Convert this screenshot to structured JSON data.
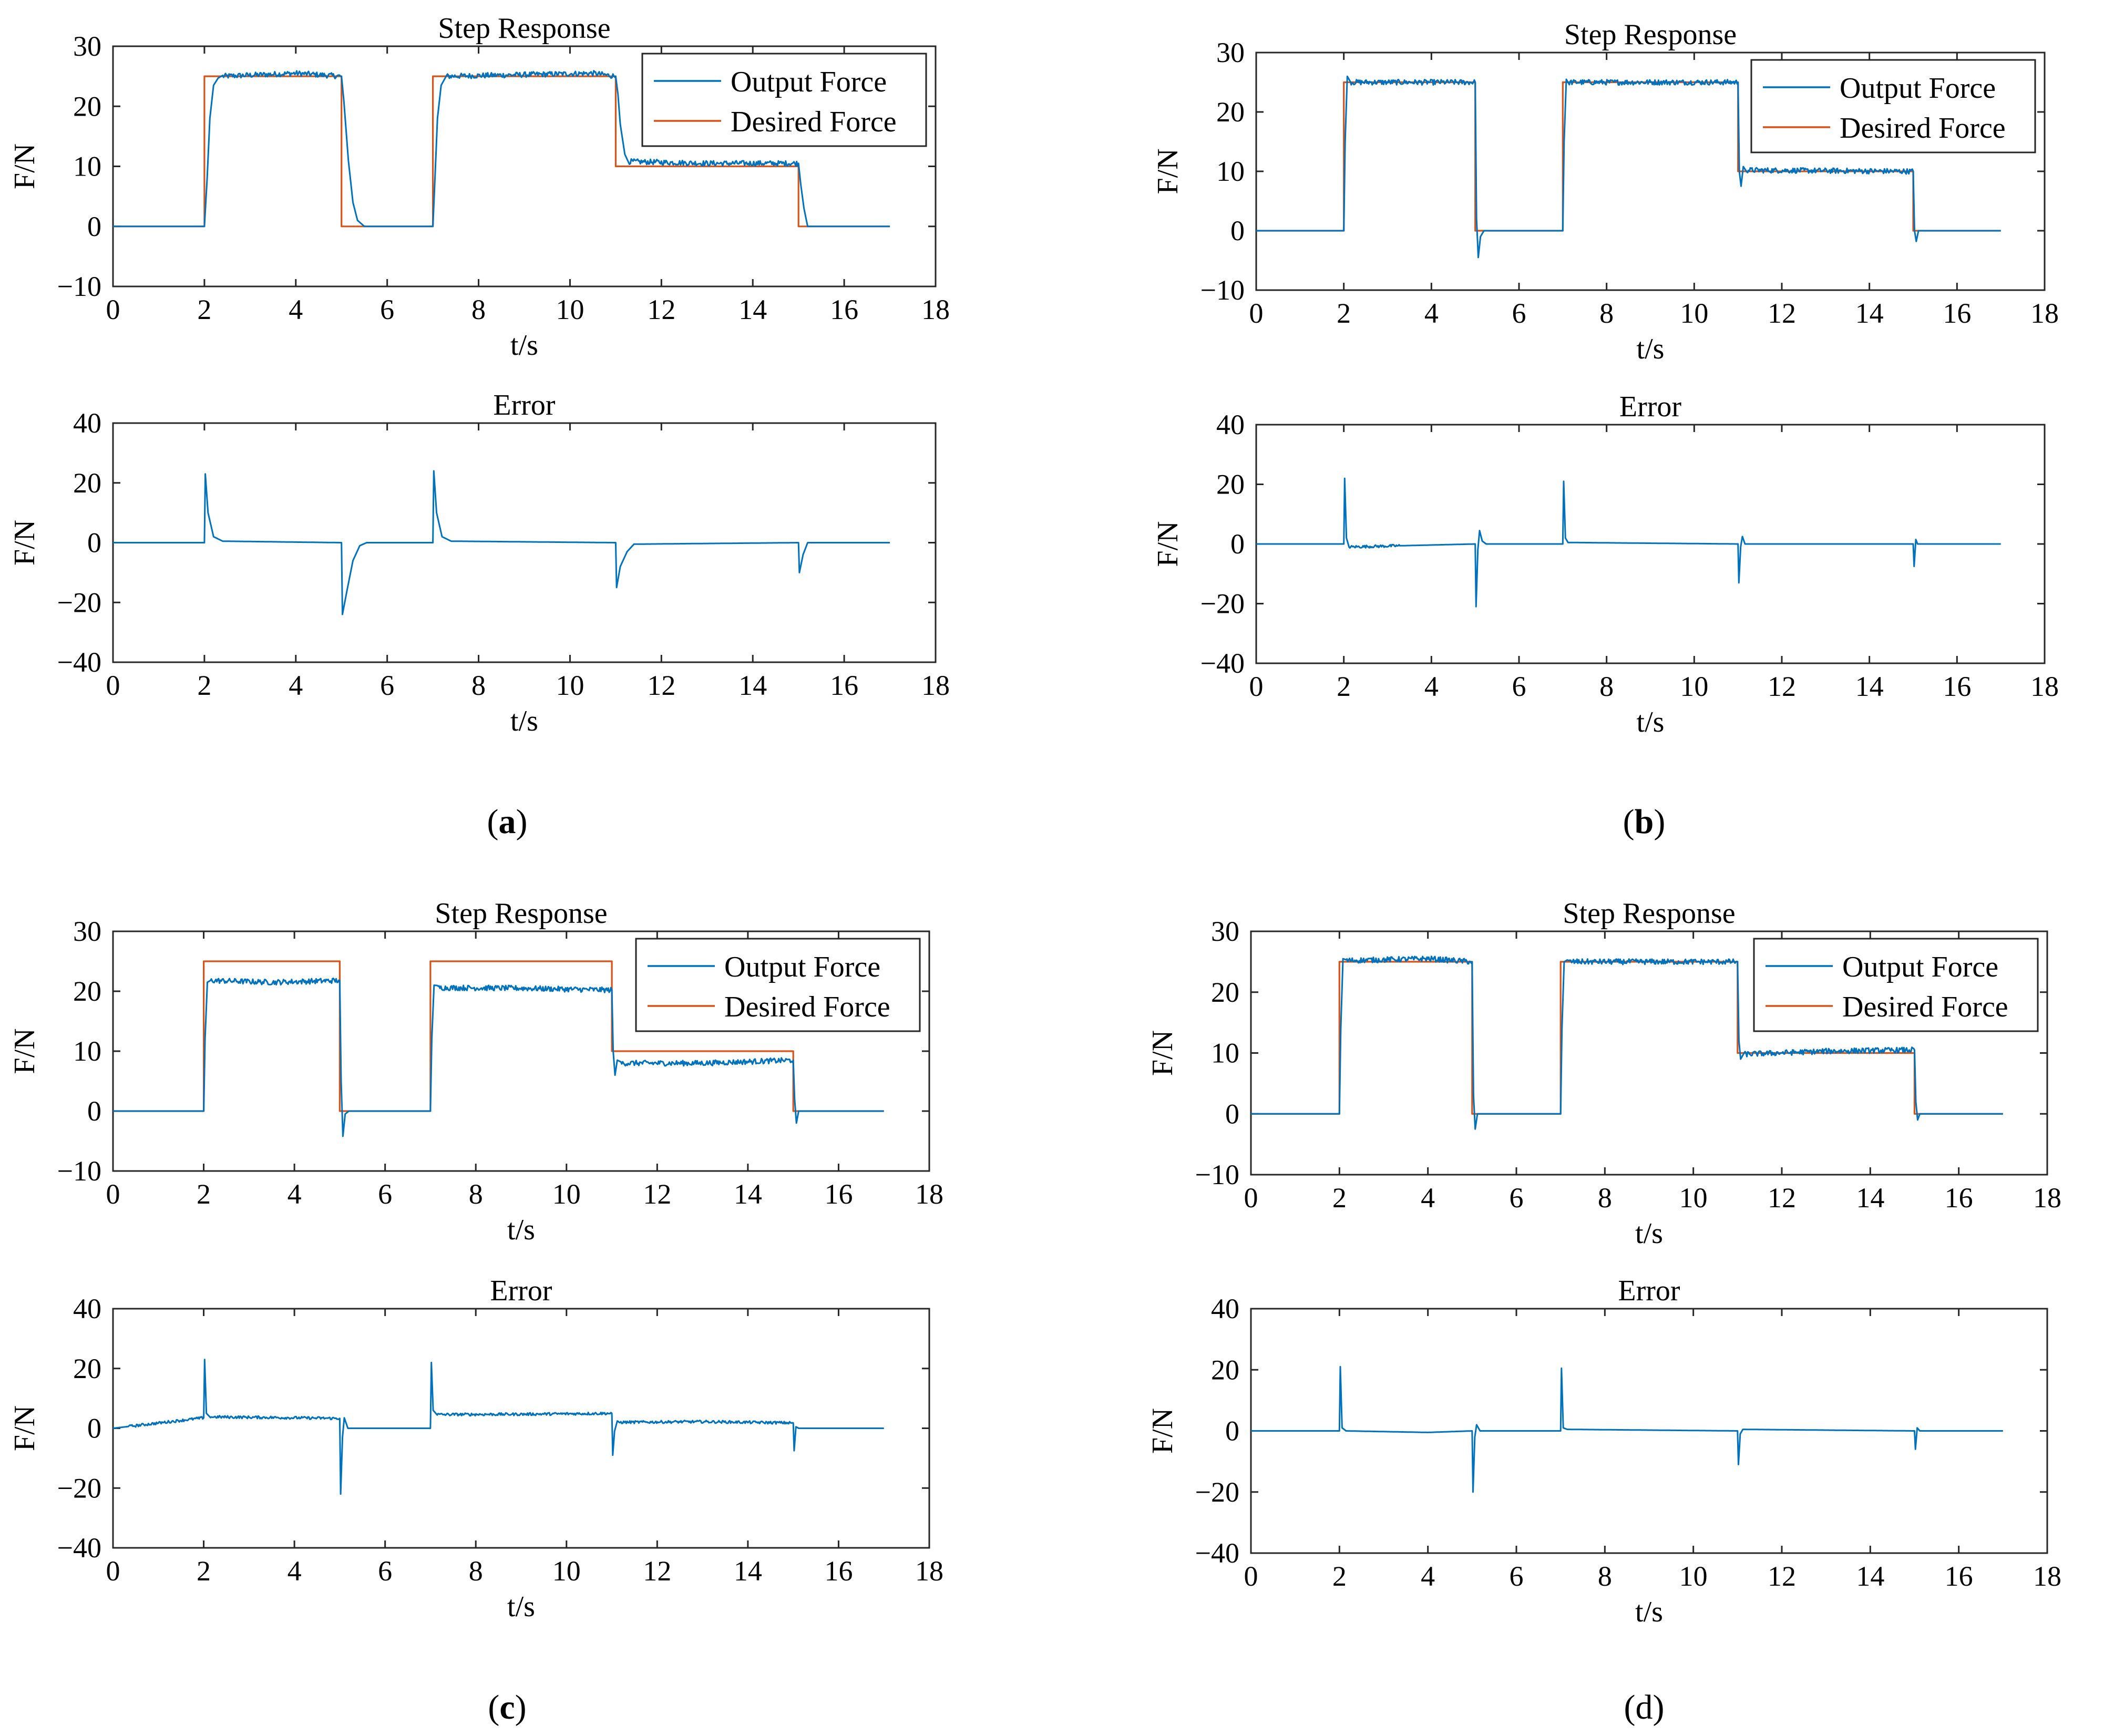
{
  "colors": {
    "output": "#0072BD",
    "desired": "#D95319",
    "axis": "#262626"
  },
  "panels": [
    {
      "letter": "a",
      "bold": true
    },
    {
      "letter": "b",
      "bold": true
    },
    {
      "letter": "c",
      "bold": true
    },
    {
      "letter": "d",
      "bold": false
    }
  ],
  "legend": {
    "output": "Output Force",
    "desired": "Desired Force"
  },
  "chart_data": [
    {
      "id": "a-step",
      "panel": "a",
      "kind": "step",
      "type": "line",
      "title": "Step Response",
      "xlabel": "t/s",
      "ylabel": "F/N",
      "xlim": [
        0,
        18
      ],
      "ylim": [
        -10,
        30
      ],
      "xticks": [
        0,
        2,
        4,
        6,
        8,
        10,
        12,
        14,
        16,
        18
      ],
      "yticks": [
        -10,
        0,
        10,
        20,
        30
      ],
      "legend_position": "top-right",
      "series": [
        {
          "name": "Output Force",
          "role": "output",
          "x": [
            0,
            2,
            2.06,
            2.12,
            2.2,
            2.3,
            2.4,
            4.0,
            5.0,
            5.05,
            5.15,
            5.25,
            5.35,
            5.5,
            7.0,
            7.05,
            7.1,
            7.18,
            7.3,
            10.5,
            11.0,
            11.05,
            11.1,
            11.2,
            11.3,
            13.0,
            15.0,
            15.05,
            15.12,
            15.2,
            17
          ],
          "y": [
            0,
            0,
            8,
            18,
            23.5,
            24.7,
            25,
            25.5,
            25,
            21,
            11,
            4,
            1,
            0,
            0,
            9,
            18,
            23.5,
            25,
            25.5,
            25,
            22,
            17,
            12,
            10.8,
            10.5,
            10.5,
            7,
            3,
            0,
            0
          ]
        },
        {
          "name": "Desired Force",
          "role": "desired",
          "x": [
            0,
            2,
            2,
            5,
            5,
            7,
            7,
            11,
            11,
            15,
            15,
            17
          ],
          "y": [
            0,
            0,
            25,
            25,
            0,
            0,
            25,
            25,
            10,
            10,
            0,
            0
          ]
        }
      ]
    },
    {
      "id": "a-error",
      "panel": "a",
      "kind": "error",
      "type": "line",
      "title": "Error",
      "xlabel": "t/s",
      "ylabel": "F/N",
      "xlim": [
        0,
        18
      ],
      "ylim": [
        -40,
        40
      ],
      "xticks": [
        0,
        2,
        4,
        6,
        8,
        10,
        12,
        14,
        16,
        18
      ],
      "yticks": [
        -40,
        -20,
        0,
        20,
        40
      ],
      "series": [
        {
          "name": "Error",
          "role": "output",
          "x": [
            0,
            2.0,
            2.02,
            2.08,
            2.2,
            2.4,
            5.0,
            5.02,
            5.12,
            5.25,
            5.4,
            5.55,
            7.0,
            7.02,
            7.08,
            7.2,
            7.4,
            11.0,
            11.02,
            11.1,
            11.25,
            11.4,
            15.0,
            15.02,
            15.1,
            15.2,
            17
          ],
          "y": [
            0,
            0,
            23,
            10,
            2,
            0.5,
            0,
            -24,
            -16,
            -6,
            -1,
            0,
            0,
            24,
            10,
            2,
            0.5,
            0,
            -15,
            -8,
            -3,
            -0.5,
            0,
            -10,
            -4,
            0,
            0
          ]
        }
      ]
    },
    {
      "id": "b-step",
      "panel": "b",
      "kind": "step",
      "type": "line",
      "title": "Step Response",
      "xlabel": "t/s",
      "ylabel": "F/N",
      "xlim": [
        0,
        18
      ],
      "ylim": [
        -10,
        30
      ],
      "xticks": [
        0,
        2,
        4,
        6,
        8,
        10,
        12,
        14,
        16,
        18
      ],
      "yticks": [
        -10,
        0,
        10,
        20,
        30
      ],
      "legend_position": "top-right",
      "series": [
        {
          "name": "Output Force",
          "role": "output",
          "x": [
            0,
            2,
            2.03,
            2.08,
            2.15,
            5.0,
            5.03,
            5.07,
            5.12,
            5.2,
            7.0,
            7.03,
            7.08,
            7.15,
            11.0,
            11.03,
            11.07,
            11.12,
            11.2,
            15.0,
            15.03,
            15.07,
            15.12,
            15.2,
            17
          ],
          "y": [
            0,
            0,
            15,
            26,
            25,
            25,
            2,
            -4.5,
            -1,
            0,
            0,
            15,
            25.5,
            25,
            25,
            10,
            7.5,
            10.8,
            10.2,
            10,
            0,
            -1.8,
            0,
            0,
            0
          ]
        },
        {
          "name": "Desired Force",
          "role": "desired",
          "x": [
            0,
            2,
            2,
            5,
            5,
            7,
            7,
            11,
            11,
            15,
            15,
            17
          ],
          "y": [
            0,
            0,
            25,
            25,
            0,
            0,
            25,
            25,
            10,
            10,
            0,
            0
          ]
        }
      ]
    },
    {
      "id": "b-error",
      "panel": "b",
      "kind": "error",
      "type": "line",
      "title": "Error",
      "xlabel": "t/s",
      "ylabel": "F/N",
      "xlim": [
        0,
        18
      ],
      "ylim": [
        -40,
        40
      ],
      "xticks": [
        0,
        2,
        4,
        6,
        8,
        10,
        12,
        14,
        16,
        18
      ],
      "yticks": [
        -40,
        -20,
        0,
        20,
        40
      ],
      "series": [
        {
          "name": "Error",
          "role": "output",
          "x": [
            0,
            2.0,
            2.02,
            2.06,
            2.12,
            5.0,
            5.02,
            5.06,
            5.1,
            5.16,
            5.25,
            7.0,
            7.02,
            7.06,
            7.12,
            11.0,
            11.02,
            11.06,
            11.1,
            11.16,
            15.0,
            15.02,
            15.06,
            15.1,
            17
          ],
          "y": [
            0,
            0,
            22,
            2,
            -1,
            0,
            -21,
            -2,
            4.5,
            1,
            0,
            0,
            21,
            2,
            0.5,
            0,
            -13,
            -1,
            2.5,
            0,
            0,
            -7.5,
            1.5,
            0,
            0
          ]
        }
      ]
    },
    {
      "id": "c-step",
      "panel": "c",
      "kind": "step",
      "type": "line",
      "title": "Step Response",
      "xlabel": "t/s",
      "ylabel": "F/N",
      "xlim": [
        0,
        18
      ],
      "ylim": [
        -10,
        30
      ],
      "xticks": [
        0,
        2,
        4,
        6,
        8,
        10,
        12,
        14,
        16,
        18
      ],
      "yticks": [
        -10,
        0,
        10,
        20,
        30
      ],
      "legend_position": "top-right",
      "series": [
        {
          "name": "Output Force",
          "role": "output",
          "x": [
            0,
            2,
            2.03,
            2.08,
            2.15,
            3.5,
            5.0,
            5.03,
            5.07,
            5.12,
            5.2,
            7.0,
            7.03,
            7.08,
            7.15,
            9.0,
            11.0,
            11.03,
            11.07,
            11.12,
            11.2,
            13.0,
            15.0,
            15.03,
            15.07,
            15.12,
            17
          ],
          "y": [
            0,
            0,
            12,
            21.5,
            21.8,
            21.5,
            21.8,
            5,
            -4.2,
            -0.5,
            0,
            0,
            12,
            21,
            20.6,
            20.5,
            20.2,
            10,
            6,
            8.5,
            8,
            8,
            8.5,
            2,
            -2,
            0,
            0
          ]
        },
        {
          "name": "Desired Force",
          "role": "desired",
          "x": [
            0,
            2,
            2,
            5,
            5,
            7,
            7,
            11,
            11,
            15,
            15,
            17
          ],
          "y": [
            0,
            0,
            25,
            25,
            0,
            0,
            25,
            25,
            10,
            10,
            0,
            0
          ]
        }
      ]
    },
    {
      "id": "c-error",
      "panel": "c",
      "kind": "error",
      "type": "line",
      "title": "Error",
      "xlabel": "t/s",
      "ylabel": "F/N",
      "xlim": [
        0,
        18
      ],
      "ylim": [
        -40,
        40
      ],
      "xticks": [
        0,
        2,
        4,
        6,
        8,
        10,
        12,
        14,
        16,
        18
      ],
      "yticks": [
        -40,
        -20,
        0,
        20,
        40
      ],
      "series": [
        {
          "name": "Error",
          "role": "output",
          "x": [
            0,
            2.0,
            2.02,
            2.06,
            2.15,
            3.5,
            5.0,
            5.02,
            5.06,
            5.1,
            5.18,
            7.0,
            7.02,
            7.06,
            7.15,
            9.0,
            11.0,
            11.02,
            11.06,
            11.12,
            13.0,
            15.0,
            15.02,
            15.06,
            15.12,
            17
          ],
          "y": [
            0,
            3.5,
            23,
            5,
            3.8,
            3.6,
            3.3,
            -22,
            -3,
            3.5,
            0,
            0,
            22,
            6,
            4.6,
            4.7,
            5,
            -9,
            -1,
            2,
            2.2,
            1.8,
            -7.5,
            0.5,
            0,
            0
          ]
        }
      ]
    },
    {
      "id": "d-step",
      "panel": "d",
      "kind": "step",
      "type": "line",
      "title": "Step Response",
      "xlabel": "t/s",
      "ylabel": "F/N",
      "xlim": [
        0,
        18
      ],
      "ylim": [
        -10,
        30
      ],
      "xticks": [
        0,
        2,
        4,
        6,
        8,
        10,
        12,
        14,
        16,
        18
      ],
      "yticks": [
        -10,
        0,
        10,
        20,
        30
      ],
      "legend_position": "top-right",
      "series": [
        {
          "name": "Output Force",
          "role": "output",
          "x": [
            0,
            2,
            2.03,
            2.08,
            2.15,
            4.0,
            5.0,
            5.03,
            5.07,
            5.12,
            5.2,
            7.0,
            7.03,
            7.08,
            7.15,
            11.0,
            11.03,
            11.07,
            11.15,
            13.0,
            15.0,
            15.03,
            15.07,
            15.12,
            17
          ],
          "y": [
            0,
            0,
            14,
            25.5,
            25.2,
            25.5,
            25,
            3,
            -2.5,
            0,
            0,
            0,
            14,
            25,
            25,
            25,
            12,
            9,
            9.8,
            10.3,
            10.5,
            2,
            -1,
            0,
            0
          ]
        },
        {
          "name": "Desired Force",
          "role": "desired",
          "x": [
            0,
            2,
            2,
            5,
            5,
            7,
            7,
            11,
            11,
            15,
            15,
            17
          ],
          "y": [
            0,
            0,
            25,
            25,
            0,
            0,
            25,
            25,
            10,
            10,
            0,
            0
          ]
        }
      ]
    },
    {
      "id": "d-error",
      "panel": "d",
      "kind": "error",
      "type": "line",
      "title": "Error",
      "xlabel": "t/s",
      "ylabel": "F/N",
      "xlim": [
        0,
        18
      ],
      "ylim": [
        -40,
        40
      ],
      "xticks": [
        0,
        2,
        4,
        6,
        8,
        10,
        12,
        14,
        16,
        18
      ],
      "yticks": [
        -40,
        -20,
        0,
        20,
        40
      ],
      "series": [
        {
          "name": "Error",
          "role": "output",
          "x": [
            0,
            2.0,
            2.02,
            2.06,
            2.15,
            4.0,
            5.0,
            5.02,
            5.06,
            5.1,
            5.18,
            7.0,
            7.02,
            7.06,
            7.15,
            11.0,
            11.02,
            11.06,
            11.12,
            15.0,
            15.02,
            15.06,
            15.12,
            17
          ],
          "y": [
            0,
            0,
            21,
            1,
            0,
            -0.5,
            0,
            -20,
            -2,
            2,
            0,
            0,
            20.5,
            1,
            0.5,
            0,
            -11,
            -1,
            0.5,
            0,
            -6,
            1,
            0,
            0
          ]
        }
      ]
    }
  ]
}
